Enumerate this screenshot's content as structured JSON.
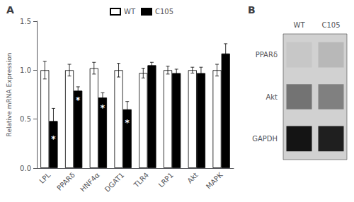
{
  "chart_data": [
    {
      "type": "bar",
      "title": "A",
      "categories": [
        "LPL",
        "PPARδ",
        "HNF4α",
        "DGAT1",
        "TLR4",
        "LRP1",
        "Akt",
        "MAPK"
      ],
      "series": [
        {
          "name": "WT",
          "color": "#ffffff",
          "values": [
            1.0,
            1.0,
            1.02,
            1.0,
            0.97,
            1.0,
            1.0,
            1.0
          ],
          "errors": [
            0.09,
            0.06,
            0.06,
            0.07,
            0.05,
            0.04,
            0.03,
            0.06
          ]
        },
        {
          "name": "C105",
          "color": "#000000",
          "values": [
            0.48,
            0.79,
            0.72,
            0.6,
            1.05,
            0.97,
            0.97,
            1.17
          ],
          "errors": [
            0.13,
            0.04,
            0.05,
            0.08,
            0.03,
            0.04,
            0.06,
            0.1
          ]
        }
      ],
      "annotations": [
        {
          "text": "*",
          "category": "LPL",
          "series": "C105"
        },
        {
          "text": "*",
          "category": "PPARδ",
          "series": "C105"
        },
        {
          "text": "*",
          "category": "HNF4α",
          "series": "C105"
        },
        {
          "text": "*",
          "category": "DGAT1",
          "series": "C105"
        }
      ],
      "ylabel": "Relative mRNA Expression",
      "ylim": [
        0.0,
        1.5
      ],
      "yticks": [
        {
          "value": 0.0,
          "label": "0.0"
        },
        {
          "value": 0.5,
          "label": "0.5"
        },
        {
          "value": 1.0,
          "label": "1.0"
        },
        {
          "value": 1.5,
          "label": "1.5"
        }
      ],
      "grid": false,
      "legend": "upper center"
    },
    {
      "type": "heatmap",
      "title": "B",
      "categories": [
        "WT",
        "C105"
      ],
      "series": [
        {
          "name": "PPARδ",
          "values": [
            0.78,
            0.72
          ]
        },
        {
          "name": "Akt",
          "values": [
            0.45,
            0.5
          ]
        },
        {
          "name": "GAPDH",
          "values": [
            0.08,
            0.12
          ]
        }
      ]
    }
  ]
}
